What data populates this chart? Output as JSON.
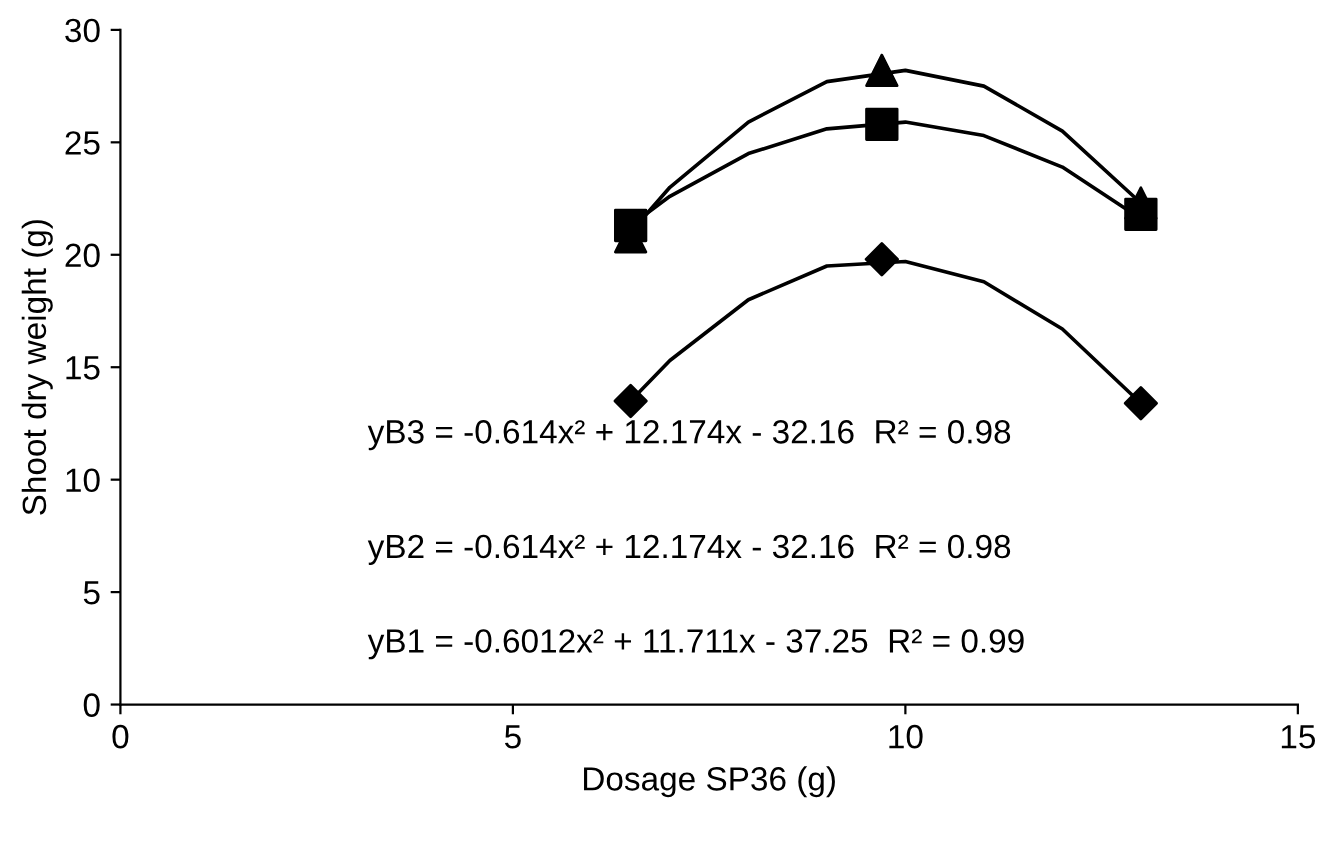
{
  "chart_data": {
    "type": "scatter",
    "xlabel": "Dosage SP36 (g)",
    "ylabel": "Shoot dry weight (g)",
    "xlim": [
      0,
      15
    ],
    "ylim": [
      0,
      30
    ],
    "xticks": [
      0,
      5,
      10,
      15
    ],
    "yticks": [
      0,
      5,
      10,
      15,
      20,
      25,
      30
    ],
    "grid": false,
    "legend": false,
    "series": [
      {
        "type": "line",
        "color": "#000000",
        "marker": "none",
        "x": [
          6.5,
          7,
          8,
          9,
          10,
          11,
          12,
          13
        ],
        "values": [
          13.5,
          15.3,
          18.0,
          19.5,
          19.7,
          18.8,
          16.7,
          13.4
        ]
      },
      {
        "type": "line",
        "color": "#000000",
        "marker": "none",
        "x": [
          6.5,
          7,
          8,
          9,
          10,
          11,
          12,
          13
        ],
        "values": [
          21.3,
          22.6,
          24.5,
          25.6,
          25.9,
          25.3,
          23.9,
          21.6
        ]
      },
      {
        "type": "line",
        "color": "#000000",
        "marker": "none",
        "x": [
          6.5,
          7,
          8,
          9,
          10,
          11,
          12,
          13
        ],
        "values": [
          21.0,
          23.0,
          25.9,
          27.7,
          28.2,
          27.5,
          25.5,
          22.3
        ]
      },
      {
        "color": "#000000",
        "marker": "diamond",
        "x": [
          6.5,
          9.7,
          13
        ],
        "values": [
          13.5,
          19.8,
          13.4
        ]
      },
      {
        "color": "#000000",
        "marker": "square",
        "x": [
          6.5,
          9.7,
          13
        ],
        "values": [
          21.3,
          25.8,
          21.8
        ]
      },
      {
        "color": "#000000",
        "marker": "triangle",
        "x": [
          6.5,
          9.7,
          13
        ],
        "values": [
          20.8,
          28.2,
          22.3
        ]
      }
    ],
    "annotations": [
      "yB3 = -0.614x² + 12.174x - 32.16  R² = 0.98",
      "yB2 = -0.614x² + 12.174x - 32.16  R² = 0.98",
      "yB1 = -0.6012x² + 11.711x - 37.25  R² = 0.99"
    ]
  }
}
